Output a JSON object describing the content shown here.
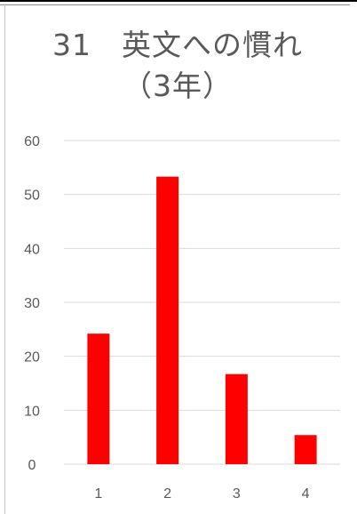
{
  "chart_data": {
    "type": "bar",
    "title": "31　英文への慣れ\n（3年）",
    "categories": [
      "1",
      "2",
      "3",
      "4"
    ],
    "values": [
      24.2,
      53.3,
      16.7,
      5.4
    ],
    "ylim": [
      0,
      60
    ],
    "yticks": [
      "0",
      "10",
      "20",
      "30",
      "40",
      "50",
      "60"
    ],
    "grid": true,
    "bar_color": "#ff0000",
    "grid_color": "#d9d9d9",
    "text_color": "#595959"
  }
}
